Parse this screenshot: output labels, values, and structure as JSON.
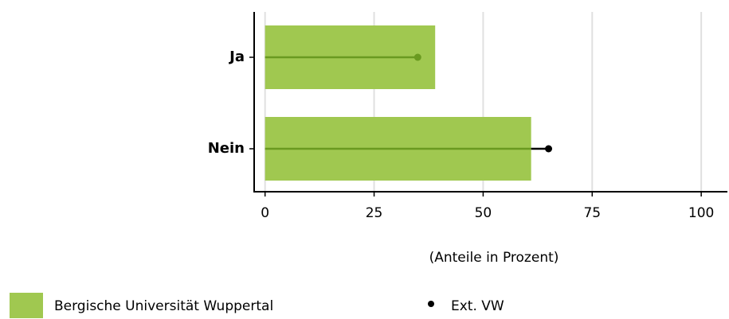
{
  "chart_data": {
    "type": "bar",
    "orientation": "horizontal",
    "x_label": "(Anteile in Prozent)",
    "categories": [
      "Ja",
      "Nein"
    ],
    "series": [
      {
        "name": "Bergische Universität Wuppertal",
        "color": "#a0c850",
        "values": [
          39,
          61
        ]
      },
      {
        "name": "Ext. VW",
        "color": "#000000",
        "values": [
          35,
          65
        ]
      }
    ],
    "xlim": [
      -2.5,
      106
    ],
    "xticks": [
      0,
      25,
      50,
      75,
      100
    ],
    "grid": true
  }
}
